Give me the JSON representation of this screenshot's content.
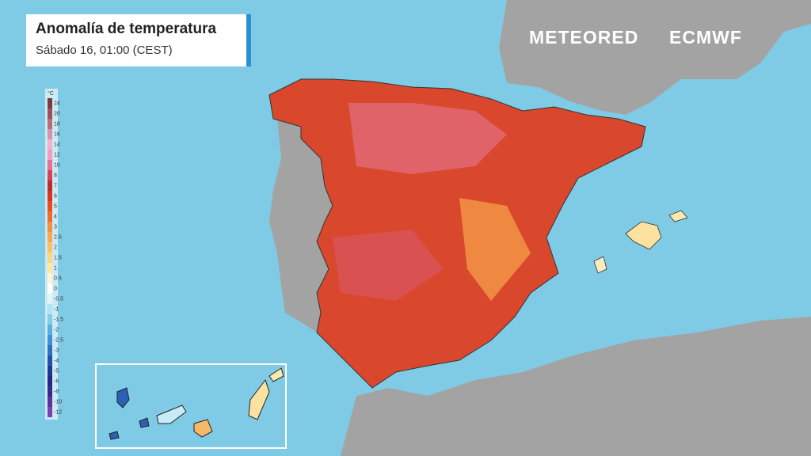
{
  "header": {
    "title": "Anomalía de temperatura",
    "subtitle": "Sábado 16, 01:00 (CEST)"
  },
  "logos": {
    "left": "METEORED",
    "right": "ECMWF"
  },
  "legend": {
    "unit": "°C",
    "entries": [
      {
        "value": 24,
        "color": "#7a3b3e"
      },
      {
        "value": 20,
        "color": "#9c5058"
      },
      {
        "value": 18,
        "color": "#bb6c7c"
      },
      {
        "value": 16,
        "color": "#d992ac"
      },
      {
        "value": 14,
        "color": "#efb2d2"
      },
      {
        "value": 12,
        "color": "#f49cc0"
      },
      {
        "value": 10,
        "color": "#e87090"
      },
      {
        "value": 8,
        "color": "#d64254"
      },
      {
        "value": 7,
        "color": "#bf2a2c"
      },
      {
        "value": 6,
        "color": "#d83422"
      },
      {
        "value": 5,
        "color": "#e84c22"
      },
      {
        "value": 4,
        "color": "#f06a2a"
      },
      {
        "value": 3,
        "color": "#f48e40"
      },
      {
        "value": 2.5,
        "color": "#f8a852"
      },
      {
        "value": 2,
        "color": "#fcc062"
      },
      {
        "value": 1.5,
        "color": "#fcd682"
      },
      {
        "value": 1,
        "color": "#fde8a2"
      },
      {
        "value": 0.5,
        "color": "#fef4d2"
      },
      {
        "value": 0,
        "color": "#ffffff"
      },
      {
        "value": -0.5,
        "color": "#e0f4f8"
      },
      {
        "value": -1,
        "color": "#b0e4f0"
      },
      {
        "value": -1.5,
        "color": "#82cce8"
      },
      {
        "value": -2,
        "color": "#5ab0e0"
      },
      {
        "value": -2.5,
        "color": "#4290d0"
      },
      {
        "value": -3,
        "color": "#2e70c0"
      },
      {
        "value": -4,
        "color": "#2250a8"
      },
      {
        "value": -5,
        "color": "#1c3890"
      },
      {
        "value": -6,
        "color": "#222a80"
      },
      {
        "value": -8,
        "color": "#3a2a88"
      },
      {
        "value": -10,
        "color": "#5a3298"
      },
      {
        "value": -12,
        "color": "#7a42b0"
      }
    ]
  }
}
